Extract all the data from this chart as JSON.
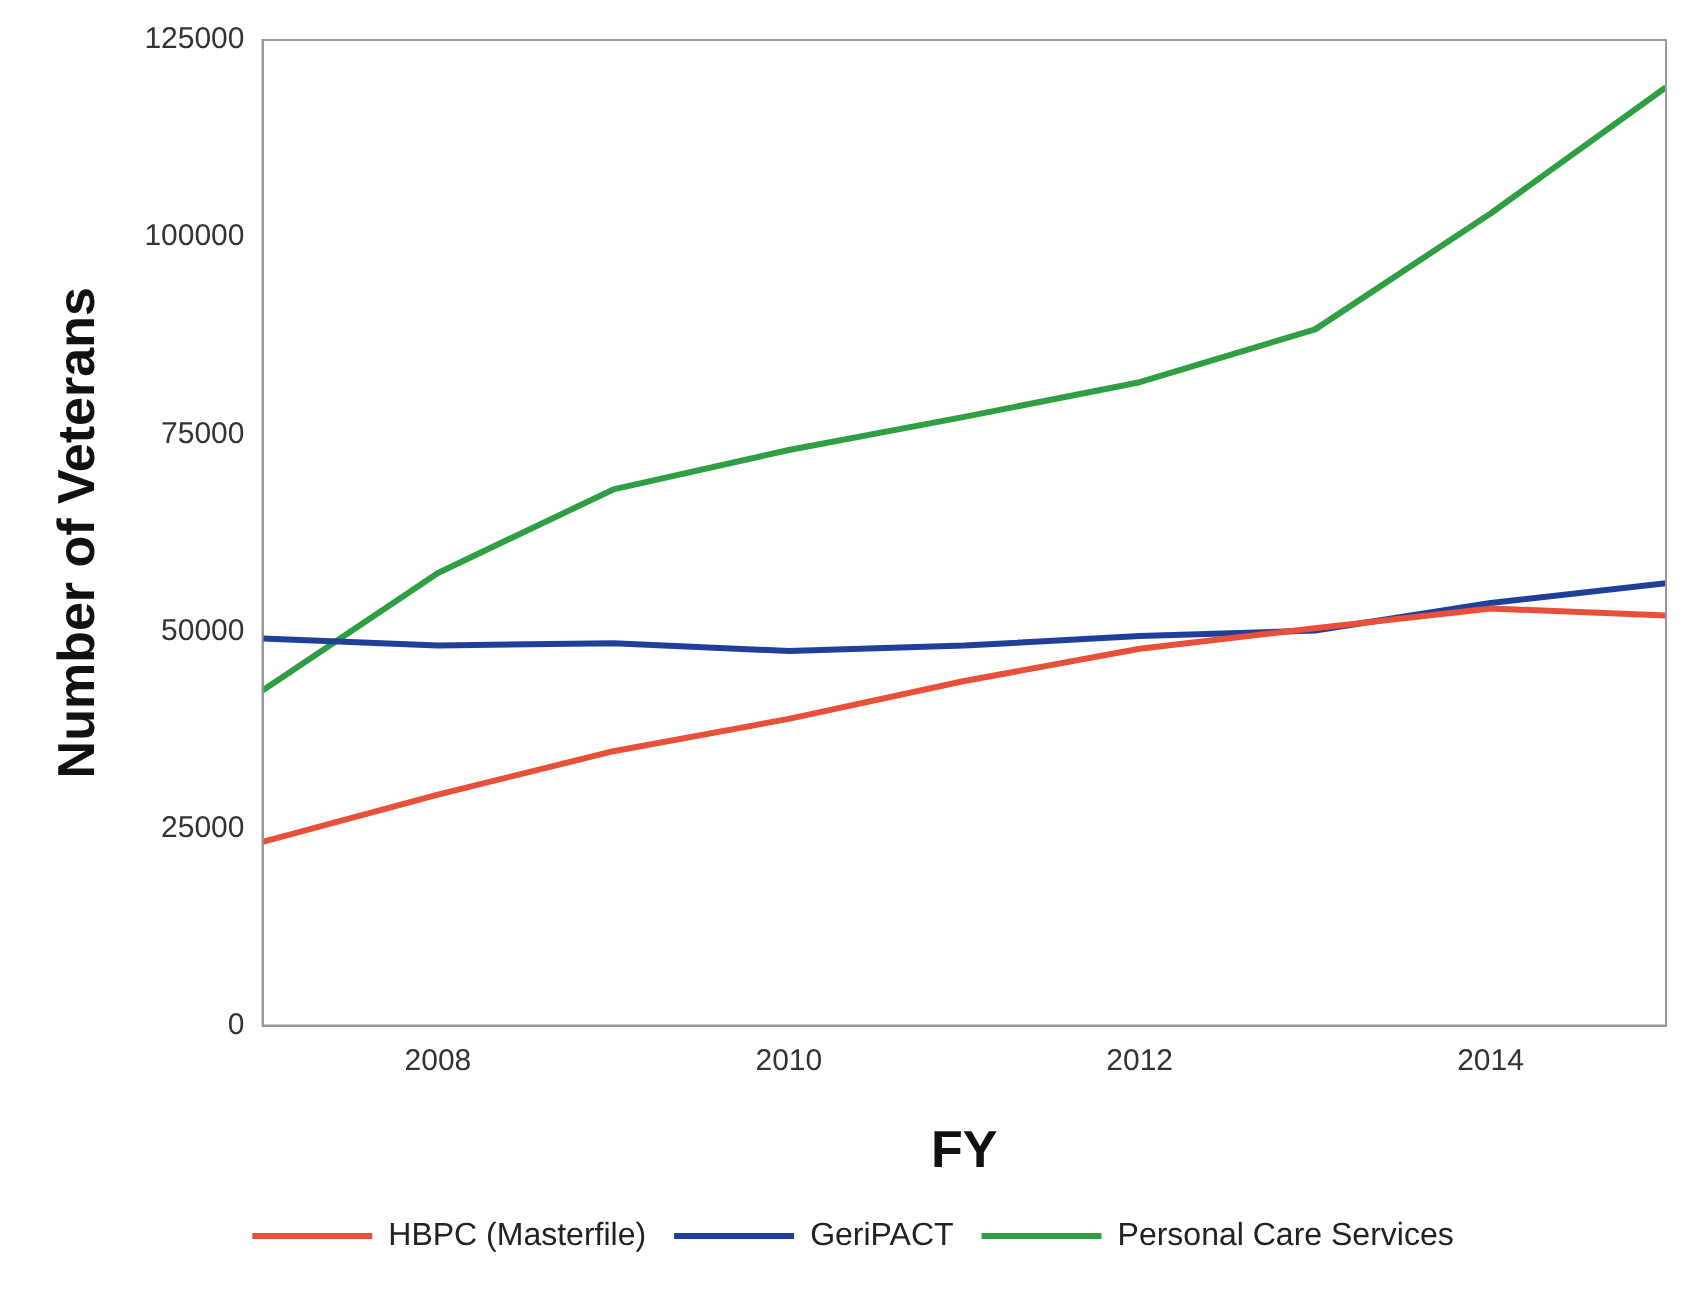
{
  "chart_data": {
    "type": "line",
    "xlabel": "FY",
    "ylabel": "Number of Veterans",
    "x": [
      2007,
      2008,
      2009,
      2010,
      2011,
      2012,
      2013,
      2014,
      2015
    ],
    "xlim": [
      2007,
      2015
    ],
    "xticks": [
      2008,
      2010,
      2012,
      2014
    ],
    "ylim": [
      0,
      125000
    ],
    "yticks": [
      0,
      25000,
      50000,
      75000,
      100000,
      125000
    ],
    "series": [
      {
        "name": "HBPC (Masterfile)",
        "color": "#e8503a",
        "values": [
          23300,
          29300,
          34800,
          38900,
          43700,
          47800,
          50400,
          52900,
          52000
        ]
      },
      {
        "name": "GeriPACT",
        "color": "#1f3f9a",
        "values": [
          49100,
          48200,
          48500,
          47500,
          48200,
          49400,
          50100,
          53600,
          56100
        ]
      },
      {
        "name": "Personal Care Services",
        "color": "#2ea043",
        "values": [
          42500,
          57400,
          68000,
          73000,
          77200,
          81600,
          88300,
          103000,
          119000
        ]
      }
    ],
    "grid": false,
    "legend": "bottom",
    "marker": "none",
    "line_style": "solid"
  }
}
